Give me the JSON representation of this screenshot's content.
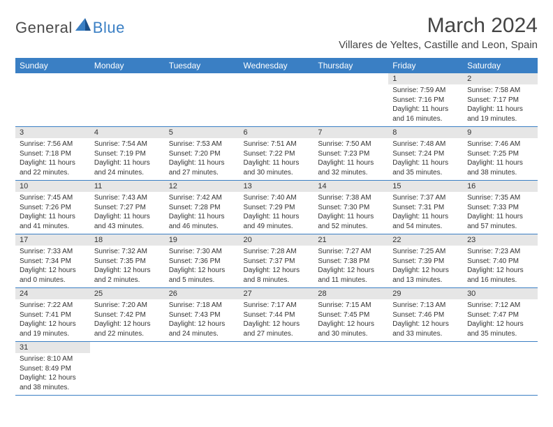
{
  "logo": {
    "general": "General",
    "blue": "Blue"
  },
  "title": "March 2024",
  "location": "Villares de Yeltes, Castille and Leon, Spain",
  "day_headers": [
    "Sunday",
    "Monday",
    "Tuesday",
    "Wednesday",
    "Thursday",
    "Friday",
    "Saturday"
  ],
  "colors": {
    "header_bg": "#3a7fc4",
    "header_text": "#ffffff",
    "daynum_bg": "#e6e6e6",
    "text": "#333333",
    "border": "#3a7fc4"
  },
  "weeks": [
    {
      "nums": [
        "",
        "",
        "",
        "",
        "",
        "1",
        "2"
      ],
      "cells": [
        null,
        null,
        null,
        null,
        null,
        {
          "sunrise": "Sunrise: 7:59 AM",
          "sunset": "Sunset: 7:16 PM",
          "day1": "Daylight: 11 hours",
          "day2": "and 16 minutes."
        },
        {
          "sunrise": "Sunrise: 7:58 AM",
          "sunset": "Sunset: 7:17 PM",
          "day1": "Daylight: 11 hours",
          "day2": "and 19 minutes."
        }
      ]
    },
    {
      "nums": [
        "3",
        "4",
        "5",
        "6",
        "7",
        "8",
        "9"
      ],
      "cells": [
        {
          "sunrise": "Sunrise: 7:56 AM",
          "sunset": "Sunset: 7:18 PM",
          "day1": "Daylight: 11 hours",
          "day2": "and 22 minutes."
        },
        {
          "sunrise": "Sunrise: 7:54 AM",
          "sunset": "Sunset: 7:19 PM",
          "day1": "Daylight: 11 hours",
          "day2": "and 24 minutes."
        },
        {
          "sunrise": "Sunrise: 7:53 AM",
          "sunset": "Sunset: 7:20 PM",
          "day1": "Daylight: 11 hours",
          "day2": "and 27 minutes."
        },
        {
          "sunrise": "Sunrise: 7:51 AM",
          "sunset": "Sunset: 7:22 PM",
          "day1": "Daylight: 11 hours",
          "day2": "and 30 minutes."
        },
        {
          "sunrise": "Sunrise: 7:50 AM",
          "sunset": "Sunset: 7:23 PM",
          "day1": "Daylight: 11 hours",
          "day2": "and 32 minutes."
        },
        {
          "sunrise": "Sunrise: 7:48 AM",
          "sunset": "Sunset: 7:24 PM",
          "day1": "Daylight: 11 hours",
          "day2": "and 35 minutes."
        },
        {
          "sunrise": "Sunrise: 7:46 AM",
          "sunset": "Sunset: 7:25 PM",
          "day1": "Daylight: 11 hours",
          "day2": "and 38 minutes."
        }
      ]
    },
    {
      "nums": [
        "10",
        "11",
        "12",
        "13",
        "14",
        "15",
        "16"
      ],
      "cells": [
        {
          "sunrise": "Sunrise: 7:45 AM",
          "sunset": "Sunset: 7:26 PM",
          "day1": "Daylight: 11 hours",
          "day2": "and 41 minutes."
        },
        {
          "sunrise": "Sunrise: 7:43 AM",
          "sunset": "Sunset: 7:27 PM",
          "day1": "Daylight: 11 hours",
          "day2": "and 43 minutes."
        },
        {
          "sunrise": "Sunrise: 7:42 AM",
          "sunset": "Sunset: 7:28 PM",
          "day1": "Daylight: 11 hours",
          "day2": "and 46 minutes."
        },
        {
          "sunrise": "Sunrise: 7:40 AM",
          "sunset": "Sunset: 7:29 PM",
          "day1": "Daylight: 11 hours",
          "day2": "and 49 minutes."
        },
        {
          "sunrise": "Sunrise: 7:38 AM",
          "sunset": "Sunset: 7:30 PM",
          "day1": "Daylight: 11 hours",
          "day2": "and 52 minutes."
        },
        {
          "sunrise": "Sunrise: 7:37 AM",
          "sunset": "Sunset: 7:31 PM",
          "day1": "Daylight: 11 hours",
          "day2": "and 54 minutes."
        },
        {
          "sunrise": "Sunrise: 7:35 AM",
          "sunset": "Sunset: 7:33 PM",
          "day1": "Daylight: 11 hours",
          "day2": "and 57 minutes."
        }
      ]
    },
    {
      "nums": [
        "17",
        "18",
        "19",
        "20",
        "21",
        "22",
        "23"
      ],
      "cells": [
        {
          "sunrise": "Sunrise: 7:33 AM",
          "sunset": "Sunset: 7:34 PM",
          "day1": "Daylight: 12 hours",
          "day2": "and 0 minutes."
        },
        {
          "sunrise": "Sunrise: 7:32 AM",
          "sunset": "Sunset: 7:35 PM",
          "day1": "Daylight: 12 hours",
          "day2": "and 2 minutes."
        },
        {
          "sunrise": "Sunrise: 7:30 AM",
          "sunset": "Sunset: 7:36 PM",
          "day1": "Daylight: 12 hours",
          "day2": "and 5 minutes."
        },
        {
          "sunrise": "Sunrise: 7:28 AM",
          "sunset": "Sunset: 7:37 PM",
          "day1": "Daylight: 12 hours",
          "day2": "and 8 minutes."
        },
        {
          "sunrise": "Sunrise: 7:27 AM",
          "sunset": "Sunset: 7:38 PM",
          "day1": "Daylight: 12 hours",
          "day2": "and 11 minutes."
        },
        {
          "sunrise": "Sunrise: 7:25 AM",
          "sunset": "Sunset: 7:39 PM",
          "day1": "Daylight: 12 hours",
          "day2": "and 13 minutes."
        },
        {
          "sunrise": "Sunrise: 7:23 AM",
          "sunset": "Sunset: 7:40 PM",
          "day1": "Daylight: 12 hours",
          "day2": "and 16 minutes."
        }
      ]
    },
    {
      "nums": [
        "24",
        "25",
        "26",
        "27",
        "28",
        "29",
        "30"
      ],
      "cells": [
        {
          "sunrise": "Sunrise: 7:22 AM",
          "sunset": "Sunset: 7:41 PM",
          "day1": "Daylight: 12 hours",
          "day2": "and 19 minutes."
        },
        {
          "sunrise": "Sunrise: 7:20 AM",
          "sunset": "Sunset: 7:42 PM",
          "day1": "Daylight: 12 hours",
          "day2": "and 22 minutes."
        },
        {
          "sunrise": "Sunrise: 7:18 AM",
          "sunset": "Sunset: 7:43 PM",
          "day1": "Daylight: 12 hours",
          "day2": "and 24 minutes."
        },
        {
          "sunrise": "Sunrise: 7:17 AM",
          "sunset": "Sunset: 7:44 PM",
          "day1": "Daylight: 12 hours",
          "day2": "and 27 minutes."
        },
        {
          "sunrise": "Sunrise: 7:15 AM",
          "sunset": "Sunset: 7:45 PM",
          "day1": "Daylight: 12 hours",
          "day2": "and 30 minutes."
        },
        {
          "sunrise": "Sunrise: 7:13 AM",
          "sunset": "Sunset: 7:46 PM",
          "day1": "Daylight: 12 hours",
          "day2": "and 33 minutes."
        },
        {
          "sunrise": "Sunrise: 7:12 AM",
          "sunset": "Sunset: 7:47 PM",
          "day1": "Daylight: 12 hours",
          "day2": "and 35 minutes."
        }
      ]
    },
    {
      "nums": [
        "31",
        "",
        "",
        "",
        "",
        "",
        ""
      ],
      "cells": [
        {
          "sunrise": "Sunrise: 8:10 AM",
          "sunset": "Sunset: 8:49 PM",
          "day1": "Daylight: 12 hours",
          "day2": "and 38 minutes."
        },
        null,
        null,
        null,
        null,
        null,
        null
      ]
    }
  ]
}
